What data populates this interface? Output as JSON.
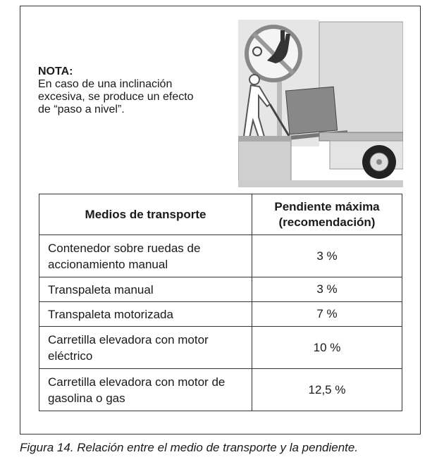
{
  "note": {
    "title": "NOTA:",
    "text": "En caso de una inclinación excesiva, se produce un efecto de “paso a nivel”."
  },
  "illustration": {
    "icon": "no-entry-hand-sign",
    "scene": "worker-pushing-pallet-truck-onto-lorry"
  },
  "table": {
    "headers": [
      "Medios de transporte",
      "Pendiente máxima (recomendación)"
    ],
    "rows": [
      {
        "medio": "Contenedor sobre ruedas de accionamiento manual",
        "pendiente": "3 %"
      },
      {
        "medio": "Transpaleta manual",
        "pendiente": "3 %"
      },
      {
        "medio": "Transpaleta motorizada",
        "pendiente": "7 %"
      },
      {
        "medio": "Carretilla elevadora con motor eléctrico",
        "pendiente": "10 %"
      },
      {
        "medio": "Carretilla elevadora con motor de gasolina o gas",
        "pendiente": "12,5 %"
      }
    ]
  },
  "caption": "Figura 14. Relación entre el medio de transporte y la pendiente."
}
